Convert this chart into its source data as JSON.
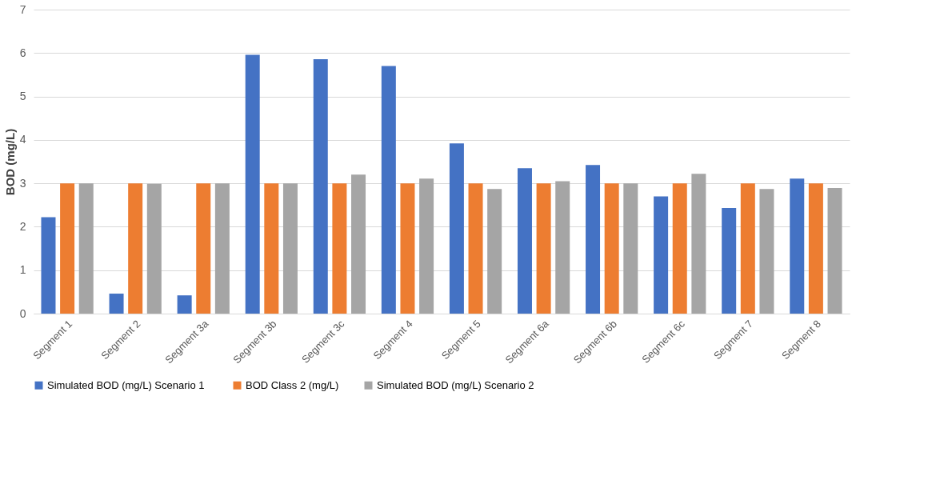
{
  "chart_data": {
    "type": "bar",
    "ylabel": "BOD (mg/L)",
    "categories": [
      "Segment 1",
      "Segment 2",
      "Segment 3a",
      "Segment 3b",
      "Segment 3c",
      "Segment 4",
      "Segment 5",
      "Segment 6a",
      "Segment 6b",
      "Segment 6c",
      "Segment 7",
      "Segment 8"
    ],
    "series": [
      {
        "name": "Simulated  BOD (mg/L) Scenario 1",
        "color": "#4472c4",
        "values": [
          2.22,
          0.46,
          0.42,
          5.96,
          5.86,
          5.7,
          3.92,
          3.35,
          3.42,
          2.7,
          2.43,
          3.11
        ]
      },
      {
        "name": "BOD Class 2 (mg/L)",
        "color": "#ed7d31",
        "values": [
          3,
          3,
          3,
          3,
          3,
          3,
          3,
          3,
          3,
          3,
          3,
          3
        ]
      },
      {
        "name": "Simulated  BOD (mg/L) Scenario 2",
        "color": "#a5a5a5",
        "values": [
          3,
          2.99,
          3,
          3,
          3.2,
          3.11,
          2.87,
          3.05,
          3,
          3.22,
          2.87,
          2.89
        ]
      }
    ],
    "ylim": [
      0,
      7
    ],
    "yticks": [
      0,
      1,
      2,
      3,
      4,
      5,
      6,
      7
    ],
    "grid": "y",
    "legend": "bottom"
  }
}
